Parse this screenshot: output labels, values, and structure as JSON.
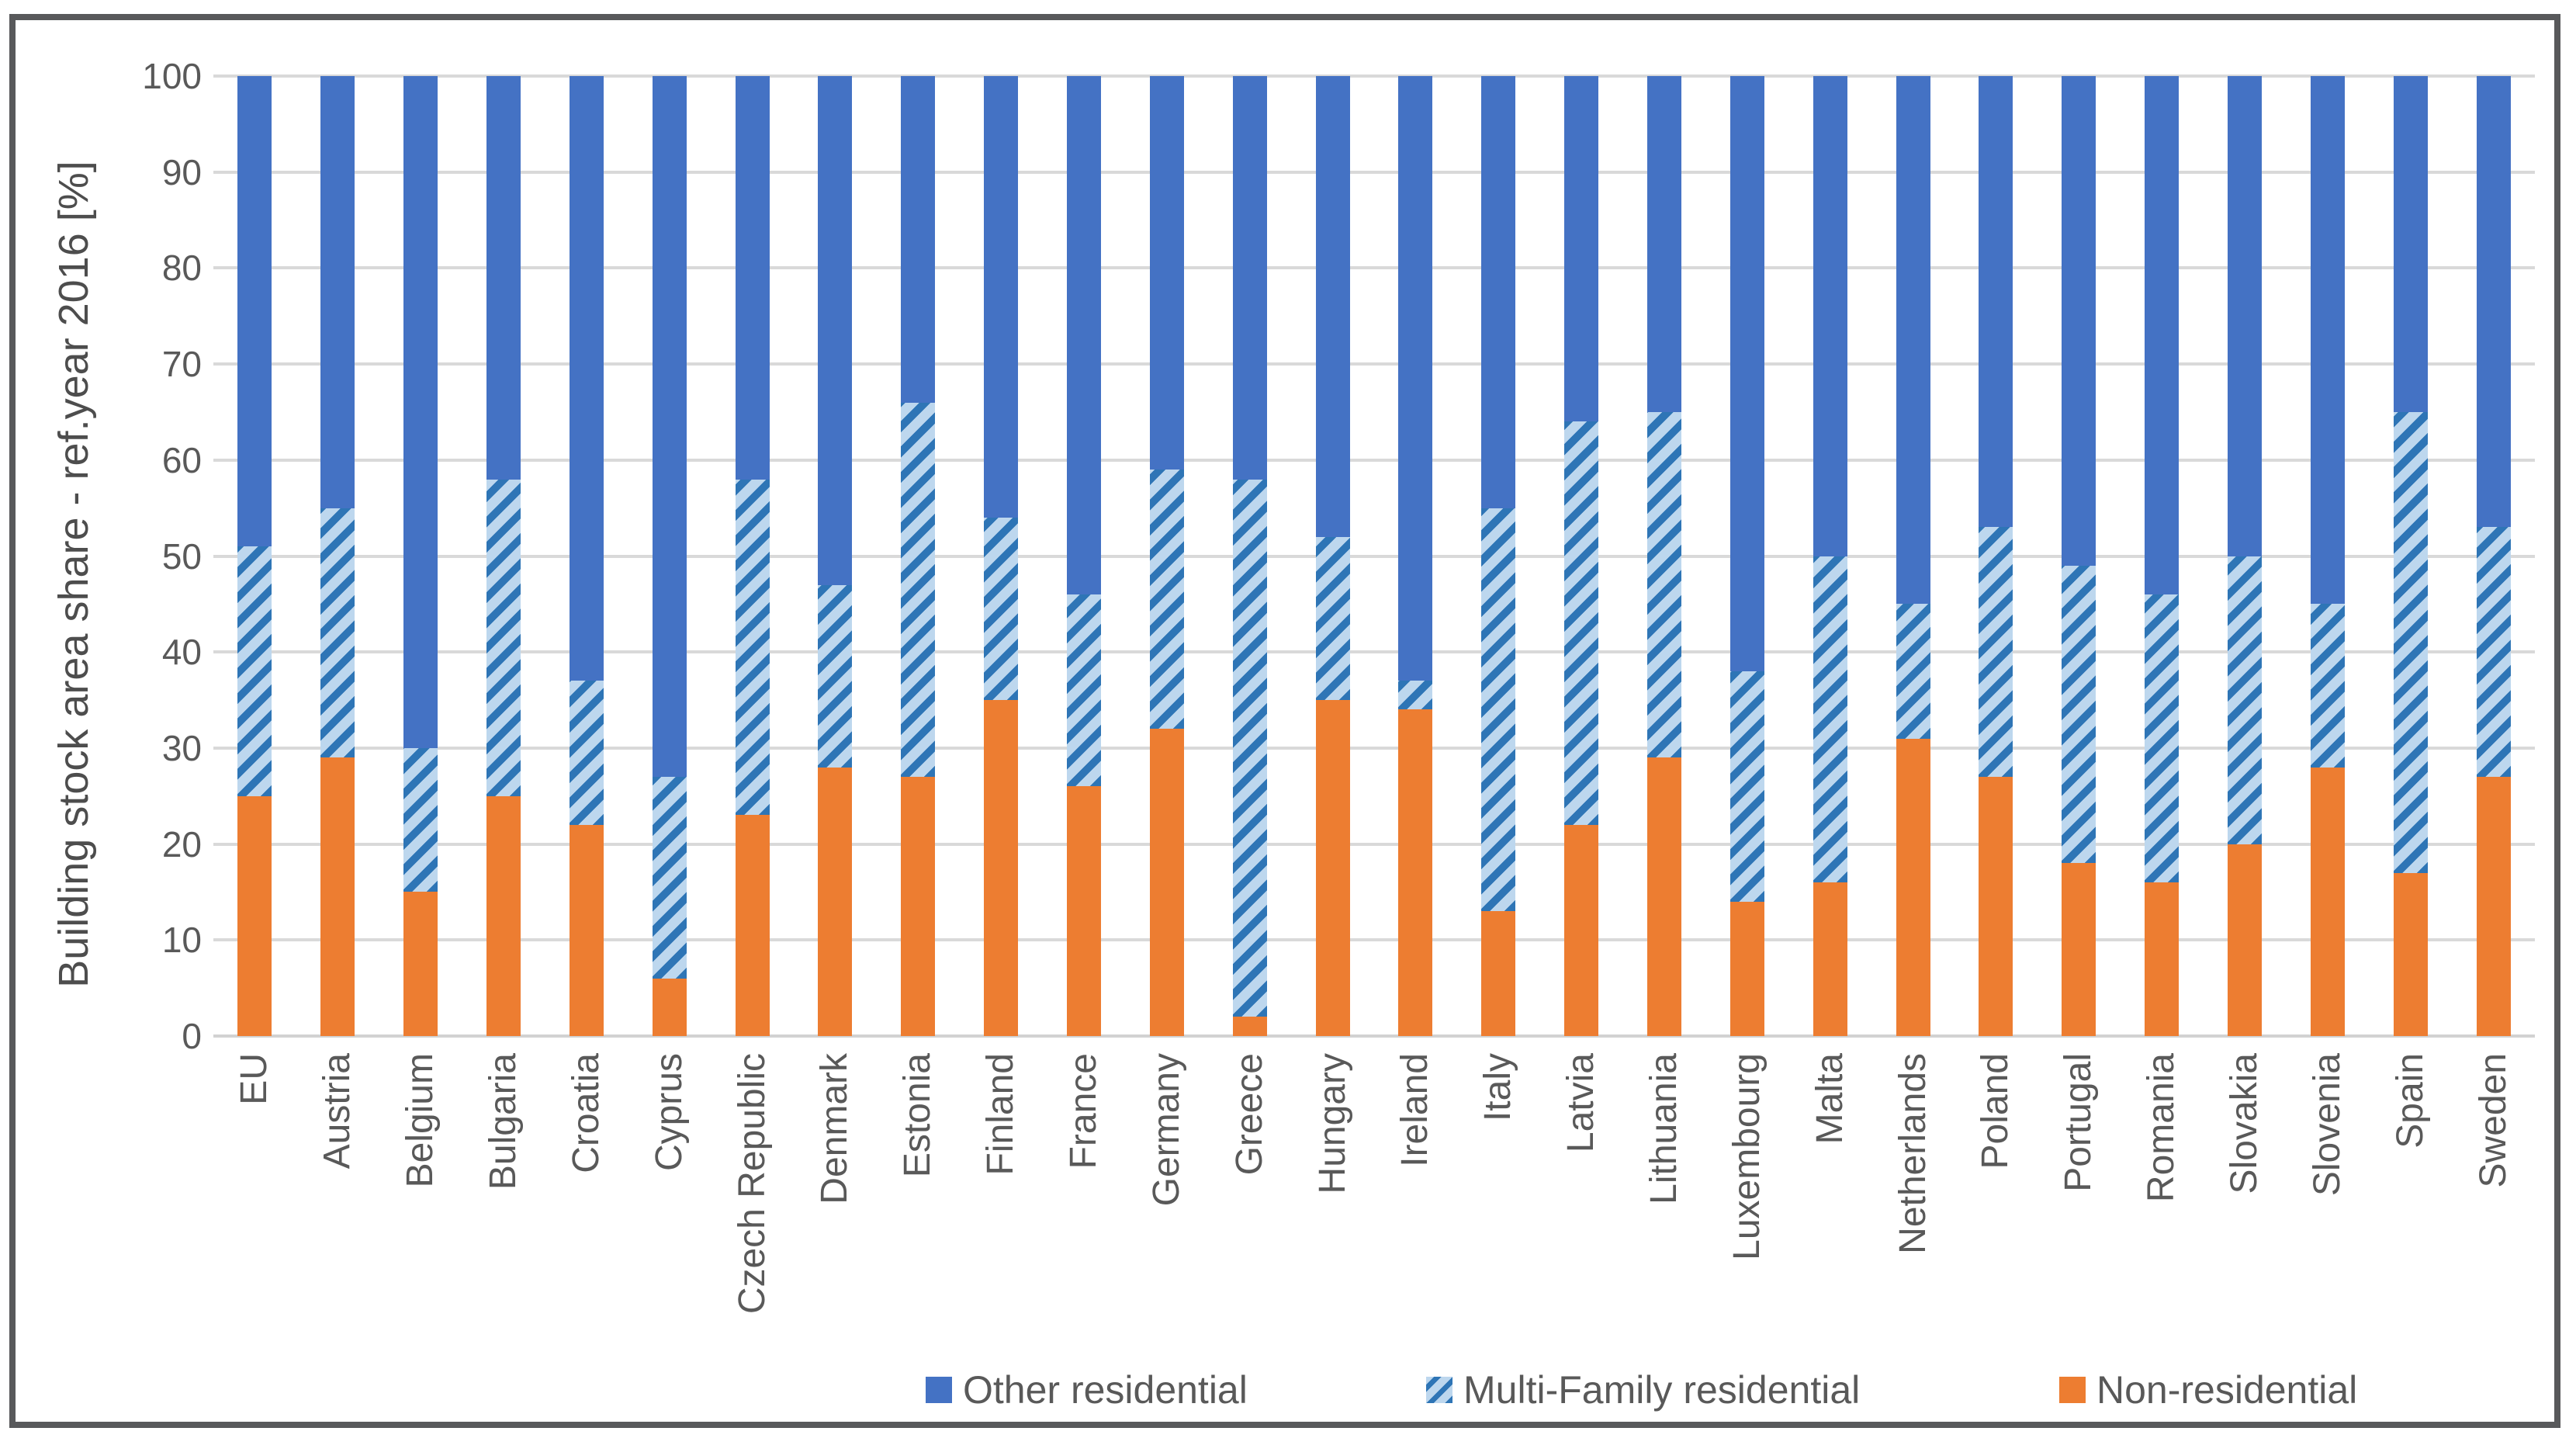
{
  "chart_data": {
    "type": "bar",
    "stacked": true,
    "orientation": "vertical",
    "ylabel": "Building stock area share - ref.year 2016 [%]",
    "xlabel": "",
    "ylim": [
      0,
      100
    ],
    "yticks": [
      0,
      10,
      20,
      30,
      40,
      50,
      60,
      70,
      80,
      90,
      100
    ],
    "grid": "horizontal",
    "legend_position": "bottom",
    "categories": [
      "EU",
      "Austria",
      "Belgium",
      "Bulgaria",
      "Croatia",
      "Cyprus",
      "Czech Republic",
      "Denmark",
      "Estonia",
      "Finland",
      "France",
      "Germany",
      "Greece",
      "Hungary",
      "Ireland",
      "Italy",
      "Latvia",
      "Lithuania",
      "Luxembourg",
      "Malta",
      "Netherlands",
      "Poland",
      "Portugal",
      "Romania",
      "Slovakia",
      "Slovenia",
      "Spain",
      "Sweden"
    ],
    "series": [
      {
        "name": "Other residential",
        "color": "#4472C4",
        "pattern": "solid",
        "values": [
          49,
          45,
          70,
          42,
          63,
          73,
          42,
          53,
          34,
          46,
          54,
          41,
          42,
          48,
          63,
          45,
          36,
          35,
          62,
          50,
          55,
          47,
          51,
          54,
          50,
          55,
          35,
          47
        ]
      },
      {
        "name": "Multi-Family residential",
        "color": "#BDD7EE",
        "stripe_color": "#2E75B6",
        "pattern": "diagonal-stripes",
        "values": [
          26,
          26,
          15,
          33,
          15,
          21,
          35,
          19,
          39,
          19,
          20,
          27,
          56,
          17,
          3,
          42,
          42,
          36,
          24,
          34,
          14,
          26,
          31,
          30,
          30,
          17,
          48,
          26
        ]
      },
      {
        "name": "Non-residential",
        "color": "#ED7D31",
        "pattern": "solid",
        "values": [
          25,
          29,
          15,
          25,
          22,
          6,
          23,
          28,
          27,
          35,
          26,
          32,
          2,
          35,
          34,
          13,
          22,
          29,
          14,
          16,
          31,
          27,
          18,
          16,
          20,
          28,
          17,
          27
        ]
      }
    ]
  },
  "colors": {
    "grid": "#d9d9d9",
    "axis_text": "#595959",
    "frame_border": "#58595b",
    "background": "#ffffff"
  }
}
